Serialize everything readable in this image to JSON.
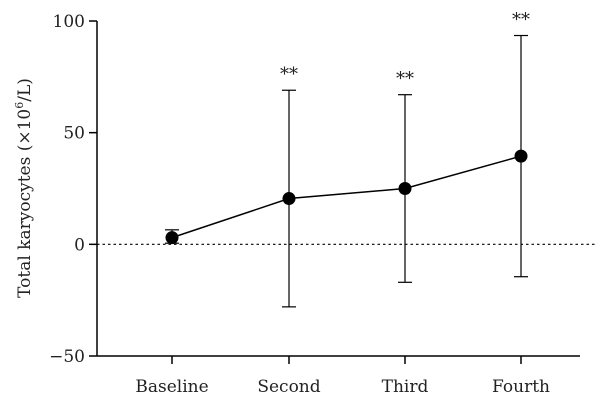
{
  "chart_data": {
    "type": "line",
    "title": "",
    "xlabel": "",
    "ylabel": "Total karyocytes (×10",
    "ylabel_sup": "6",
    "ylabel_unit": "/L)",
    "categories": [
      "Baseline",
      "Second",
      "Third",
      "Fourth"
    ],
    "series": [
      {
        "values": [
          3,
          20.5,
          25,
          39.5
        ],
        "error_lower": [
          0.5,
          -28,
          -17,
          -14.5
        ],
        "error_upper": [
          6.5,
          69,
          67,
          93.5
        ]
      }
    ],
    "annotations": [
      "",
      "**",
      "**",
      "**"
    ],
    "ylim": [
      -50,
      100
    ],
    "yticks": [
      -50,
      0,
      50,
      100
    ],
    "reference_line": {
      "y": 0,
      "style": "dotted"
    },
    "grid": false,
    "legend": "none",
    "colors": {
      "line": "#000000",
      "marker": "#000000",
      "axis": "#000000"
    }
  }
}
